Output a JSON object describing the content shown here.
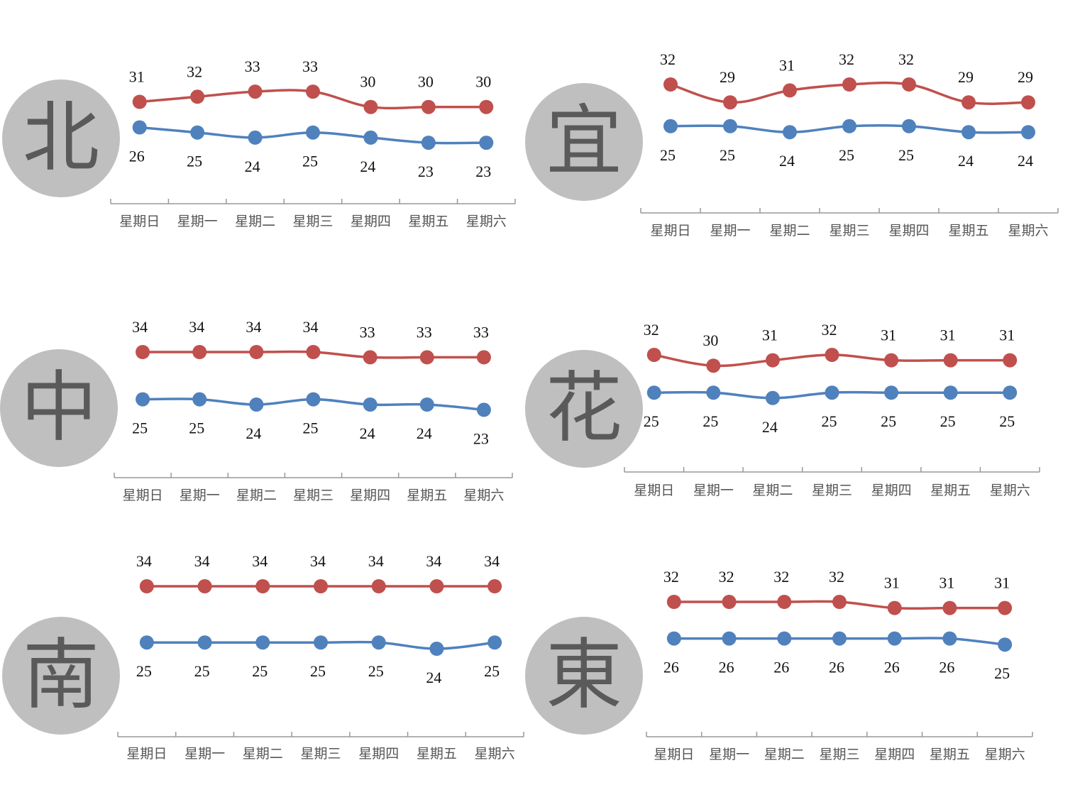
{
  "colors": {
    "high": "#c0504d",
    "low": "#4f81bd",
    "badge": "#bfbfbf",
    "axis": "#999999"
  },
  "chart_data": [
    {
      "type": "line",
      "badge": "北",
      "categories": [
        "星期日",
        "星期一",
        "星期二",
        "星期三",
        "星期四",
        "星期五",
        "星期六"
      ],
      "series": [
        {
          "values": [
            31,
            32,
            33,
            33,
            30,
            30,
            30
          ]
        },
        {
          "values": [
            26,
            25,
            24,
            25,
            24,
            23,
            23
          ]
        }
      ]
    },
    {
      "type": "line",
      "badge": "宜",
      "categories": [
        "星期日",
        "星期一",
        "星期二",
        "星期三",
        "星期四",
        "星期五",
        "星期六"
      ],
      "series": [
        {
          "values": [
            32,
            29,
            31,
            32,
            32,
            29,
            29
          ]
        },
        {
          "values": [
            25,
            25,
            24,
            25,
            25,
            24,
            24
          ]
        }
      ]
    },
    {
      "type": "line",
      "badge": "中",
      "categories": [
        "星期日",
        "星期一",
        "星期二",
        "星期三",
        "星期四",
        "星期五",
        "星期六"
      ],
      "series": [
        {
          "values": [
            34,
            34,
            34,
            34,
            33,
            33,
            33
          ]
        },
        {
          "values": [
            25,
            25,
            24,
            25,
            24,
            24,
            23
          ]
        }
      ]
    },
    {
      "type": "line",
      "badge": "花",
      "categories": [
        "星期日",
        "星期一",
        "星期二",
        "星期三",
        "星期四",
        "星期五",
        "星期六"
      ],
      "series": [
        {
          "values": [
            32,
            30,
            31,
            32,
            31,
            31,
            31
          ]
        },
        {
          "values": [
            25,
            25,
            24,
            25,
            25,
            25,
            25
          ]
        }
      ]
    },
    {
      "type": "line",
      "badge": "南",
      "categories": [
        "星期日",
        "星期一",
        "星期二",
        "星期三",
        "星期四",
        "星期五",
        "星期六"
      ],
      "series": [
        {
          "values": [
            34,
            34,
            34,
            34,
            34,
            34,
            34
          ]
        },
        {
          "values": [
            25,
            25,
            25,
            25,
            25,
            24,
            25
          ]
        }
      ]
    },
    {
      "type": "line",
      "badge": "東",
      "categories": [
        "星期日",
        "星期一",
        "星期二",
        "星期三",
        "星期四",
        "星期五",
        "星期六"
      ],
      "series": [
        {
          "values": [
            32,
            32,
            32,
            32,
            31,
            31,
            31
          ]
        },
        {
          "values": [
            26,
            26,
            26,
            26,
            26,
            26,
            25
          ]
        }
      ]
    }
  ]
}
